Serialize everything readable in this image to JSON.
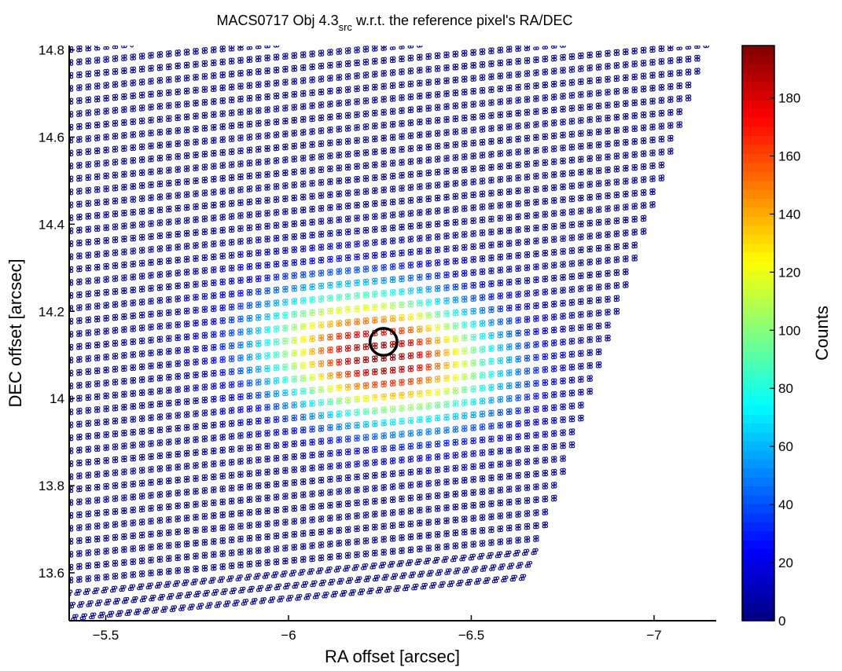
{
  "chart_data": {
    "type": "scatter",
    "title": {
      "prefix": "MACS0717 Obj 4.3",
      "subscript": "src",
      "suffix": " w.r.t. the reference pixel's RA/DEC"
    },
    "xlabel": "RA offset [arcsec]",
    "ylabel": "DEC offset [arcsec]",
    "xlim": [
      -5.4,
      -7.17
    ],
    "ylim": [
      13.49,
      14.81
    ],
    "x_reversed": true,
    "x_ticks": [
      {
        "value": -5.5,
        "label": "−5.5"
      },
      {
        "value": -6.0,
        "label": "−6"
      },
      {
        "value": -6.5,
        "label": "−6.5"
      },
      {
        "value": -7.0,
        "label": "−7"
      }
    ],
    "y_ticks": [
      {
        "value": 13.6,
        "label": "13.6"
      },
      {
        "value": 13.8,
        "label": "13.8"
      },
      {
        "value": 14.0,
        "label": "14"
      },
      {
        "value": 14.2,
        "label": "14.2"
      },
      {
        "value": 14.4,
        "label": "14.4"
      },
      {
        "value": 14.6,
        "label": "14.6"
      },
      {
        "value": 14.8,
        "label": "14.8"
      }
    ],
    "marker": "small open circles",
    "colormap": "jet",
    "grid": false,
    "colorbar": {
      "label": "Counts",
      "range": [
        0,
        198
      ],
      "ticks": [
        {
          "value": 0,
          "label": "0"
        },
        {
          "value": 20,
          "label": "20"
        },
        {
          "value": 40,
          "label": "40"
        },
        {
          "value": 60,
          "label": "60"
        },
        {
          "value": 80,
          "label": "80"
        },
        {
          "value": 100,
          "label": "100"
        },
        {
          "value": 120,
          "label": "120"
        },
        {
          "value": 140,
          "label": "140"
        },
        {
          "value": 160,
          "label": "160"
        },
        {
          "value": 180,
          "label": "180"
        }
      ]
    },
    "sampling_region": {
      "shape": "parallelogram",
      "corners": [
        {
          "x": -5.4,
          "y": 13.56
        },
        {
          "x": -6.1,
          "y": 14.81
        },
        {
          "x": -7.17,
          "y": 14.73
        },
        {
          "x": -6.65,
          "y": 13.49
        }
      ],
      "row_spacing_dec": 0.0297,
      "sub_rows_per_band": 2,
      "sub_row_offset_dec": 0.0072,
      "pair_offset_ra": 0.0065,
      "point_spacing_ra": 0.0245,
      "row_tilt_dec_per_ra": 0.075
    },
    "intensity_model": {
      "peak_counts": 198,
      "center": {
        "x": -6.25,
        "y": 14.1
      },
      "major_axis_direction_dec_per_ra": 0.09,
      "sigma_major_arcsec": 0.22,
      "sigma_minor_arcsec": 0.105,
      "background_counts": 3
    },
    "annotations": [
      {
        "type": "circle",
        "x": -6.26,
        "y": 14.13,
        "radius_arcsec": 0.037,
        "color": "#000000"
      }
    ]
  }
}
